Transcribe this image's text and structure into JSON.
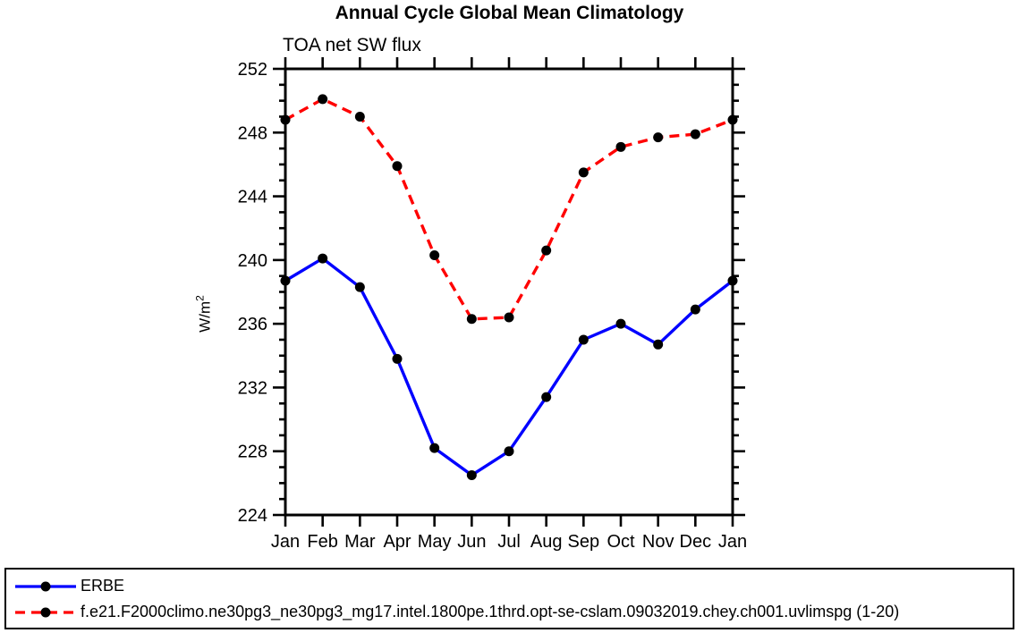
{
  "chart_data": {
    "type": "line",
    "title": "Annual Cycle Global Mean Climatology",
    "subtitle": "TOA net SW flux",
    "ylabel": "W/m²",
    "ylabel_base": "W/m",
    "ylabel_exponent": "2",
    "categories": [
      "Jan",
      "Feb",
      "Mar",
      "Apr",
      "May",
      "Jun",
      "Jul",
      "Aug",
      "Sep",
      "Oct",
      "Nov",
      "Dec",
      "Jan"
    ],
    "ylim": [
      224,
      252
    ],
    "ytick_major_step": 4,
    "ytick_minor_step": 1,
    "ytick_labels": [
      "224",
      "228",
      "232",
      "236",
      "240",
      "244",
      "248",
      "252"
    ],
    "grid": false,
    "legend_position": "bottom-outside",
    "marker_color": "#000000",
    "axis_color": "#000000",
    "background_color": "#ffffff",
    "series": [
      {
        "name": "ERBE",
        "color": "#0000ff",
        "line_style": "solid",
        "marker": "filled-circle",
        "values": [
          238.7,
          240.1,
          238.3,
          233.8,
          228.2,
          226.5,
          228.0,
          231.4,
          235.0,
          236.0,
          234.7,
          236.9,
          238.7
        ]
      },
      {
        "name": "f.e21.F2000climo.ne30pg3_ne30pg3_mg17.intel.1800pe.1thrd.opt-se-cslam.09032019.chey.ch001.uvlimspg (1-20)",
        "color": "#ff0000",
        "line_style": "dashed",
        "marker": "filled-circle",
        "values": [
          248.8,
          250.1,
          249.0,
          245.9,
          240.3,
          236.3,
          236.4,
          240.6,
          245.5,
          247.1,
          247.7,
          247.9,
          248.8
        ]
      }
    ]
  }
}
